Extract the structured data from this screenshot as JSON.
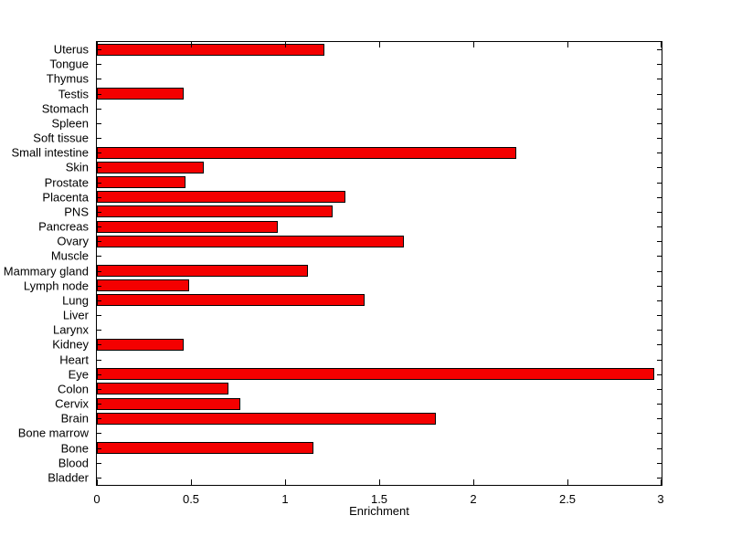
{
  "chart_data": {
    "type": "bar",
    "orientation": "horizontal",
    "title": "",
    "xlabel": "Enrichment",
    "ylabel": "",
    "xlim": [
      0,
      3
    ],
    "xticks": [
      0,
      0.5,
      1,
      1.5,
      2,
      2.5,
      3
    ],
    "xtick_labels": [
      "0",
      "0.5",
      "1",
      "1.5",
      "2",
      "2.5",
      "3"
    ],
    "grid": false,
    "legend_position": "none",
    "bar_color": "#f40000",
    "bar_edge_color": "#000000",
    "axis_color": "#000000",
    "background_color": "#ffffff",
    "categories": [
      "Uterus",
      "Tongue",
      "Thymus",
      "Testis",
      "Stomach",
      "Spleen",
      "Soft tissue",
      "Small intestine",
      "Skin",
      "Prostate",
      "Placenta",
      "PNS",
      "Pancreas",
      "Ovary",
      "Muscle",
      "Mammary gland",
      "Lymph node",
      "Lung",
      "Liver",
      "Larynx",
      "Kidney",
      "Heart",
      "Eye",
      "Colon",
      "Cervix",
      "Brain",
      "Bone marrow",
      "Bone",
      "Blood",
      "Bladder"
    ],
    "values": [
      1.21,
      0,
      0,
      0.46,
      0,
      0,
      0,
      2.23,
      0.57,
      0.47,
      1.32,
      1.25,
      0.96,
      1.63,
      0,
      1.12,
      0.49,
      1.42,
      0,
      0,
      0.46,
      0,
      2.96,
      0.7,
      0.76,
      1.8,
      0,
      1.15,
      0,
      0
    ]
  }
}
